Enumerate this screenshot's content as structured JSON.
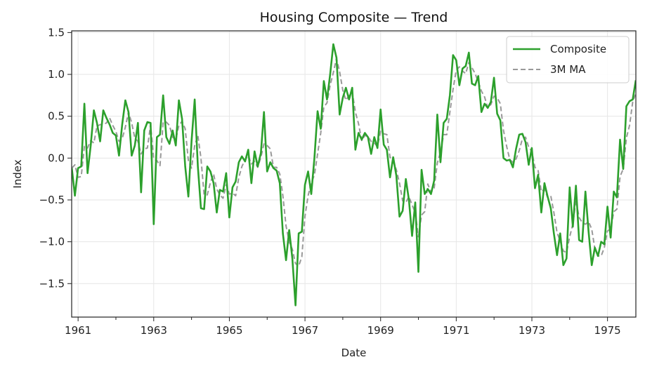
{
  "chart_data": {
    "type": "line",
    "title": "Housing Composite — Trend",
    "xlabel": "Date",
    "ylabel": "Index",
    "xlim": [
      1960.83,
      1975.75
    ],
    "ylim": [
      -1.9,
      1.52
    ],
    "x_ticks": [
      1961,
      1963,
      1965,
      1967,
      1969,
      1971,
      1973,
      1975
    ],
    "x_minor_ticks": [
      1962,
      1964,
      1966,
      1968,
      1970,
      1972,
      1974
    ],
    "y_ticks": [
      -1.5,
      -1.0,
      -0.5,
      0.0,
      0.5,
      1.0,
      1.5
    ],
    "y_tick_labels": [
      "−1.5",
      "−1.0",
      "−0.5",
      "0.0",
      "0.5",
      "1.0",
      "1.5"
    ],
    "grid": true,
    "legend": "top-right",
    "x_start": 1960.833,
    "x_step": 0.08333,
    "series": [
      {
        "name": "Composite",
        "color": "#2ca02c",
        "style": "solid",
        "values": [
          -0.12,
          -0.45,
          -0.12,
          -0.1,
          0.65,
          -0.18,
          0.15,
          0.57,
          0.42,
          0.2,
          0.57,
          0.48,
          0.4,
          0.3,
          0.27,
          0.03,
          0.4,
          0.69,
          0.55,
          0.03,
          0.15,
          0.42,
          -0.41,
          0.33,
          0.43,
          0.42,
          -0.79,
          0.25,
          0.28,
          0.75,
          0.25,
          0.17,
          0.33,
          0.15,
          0.69,
          0.47,
          -0.1,
          -0.46,
          0.2,
          0.7,
          -0.1,
          -0.6,
          -0.61,
          -0.1,
          -0.16,
          -0.3,
          -0.65,
          -0.38,
          -0.4,
          -0.18,
          -0.71,
          -0.35,
          -0.28,
          -0.05,
          0.02,
          -0.04,
          0.1,
          -0.3,
          0.08,
          -0.1,
          0.06,
          0.55,
          -0.16,
          -0.05,
          -0.12,
          -0.15,
          -0.3,
          -0.9,
          -1.22,
          -0.86,
          -1.2,
          -1.76,
          -0.9,
          -0.88,
          -0.32,
          -0.16,
          -0.43,
          0.0,
          0.56,
          0.35,
          0.92,
          0.7,
          1.0,
          1.36,
          1.2,
          0.52,
          0.72,
          0.84,
          0.7,
          0.84,
          0.1,
          0.3,
          0.22,
          0.3,
          0.25,
          0.05,
          0.25,
          0.12,
          0.58,
          0.16,
          0.1,
          -0.23,
          0.01,
          -0.21,
          -0.7,
          -0.63,
          -0.25,
          -0.5,
          -0.93,
          -0.53,
          -1.36,
          -0.14,
          -0.43,
          -0.37,
          -0.43,
          -0.27,
          0.52,
          -0.05,
          0.42,
          0.47,
          0.75,
          1.23,
          1.17,
          0.87,
          1.07,
          1.1,
          1.26,
          0.89,
          0.87,
          0.98,
          0.55,
          0.65,
          0.6,
          0.67,
          0.96,
          0.53,
          0.45,
          0.0,
          -0.03,
          -0.02,
          -0.11,
          0.11,
          0.28,
          0.29,
          0.19,
          -0.08,
          0.12,
          -0.36,
          -0.2,
          -0.65,
          -0.3,
          -0.46,
          -0.6,
          -0.9,
          -1.16,
          -0.9,
          -1.28,
          -1.2,
          -0.35,
          -0.82,
          -0.33,
          -0.98,
          -1.0,
          -0.4,
          -0.88,
          -1.28,
          -1.07,
          -1.17,
          -1.0,
          -1.03,
          -0.58,
          -0.95,
          -0.4,
          -0.47,
          0.22,
          -0.13,
          0.62,
          0.68,
          0.7,
          0.93
        ]
      },
      {
        "name": "3M MA",
        "color": "#999999",
        "style": "dashed",
        "values": [
          -0.12,
          -0.08,
          -0.23,
          -0.22,
          0.14,
          0.12,
          0.21,
          0.18,
          0.38,
          0.4,
          0.4,
          0.42,
          0.48,
          0.39,
          0.32,
          0.2,
          0.23,
          0.37,
          0.55,
          0.42,
          0.24,
          0.2,
          0.05,
          0.11,
          0.12,
          0.4,
          -0.01,
          -0.03,
          -0.09,
          0.43,
          0.43,
          0.39,
          0.25,
          0.22,
          0.39,
          0.44,
          0.35,
          -0.03,
          -0.12,
          0.15,
          0.27,
          0.0,
          -0.44,
          -0.44,
          -0.29,
          -0.19,
          -0.37,
          -0.44,
          -0.48,
          -0.32,
          -0.43,
          -0.42,
          -0.45,
          -0.23,
          -0.1,
          -0.02,
          0.03,
          -0.07,
          -0.04,
          -0.11,
          0.01,
          0.17,
          0.15,
          0.11,
          -0.11,
          -0.11,
          -0.19,
          -0.45,
          -0.81,
          -1.0,
          -1.09,
          -1.26,
          -1.29,
          -1.18,
          -0.7,
          -0.45,
          -0.3,
          -0.2,
          0.05,
          0.3,
          0.61,
          0.66,
          0.87,
          1.02,
          1.19,
          1.03,
          0.81,
          0.69,
          0.75,
          0.79,
          0.55,
          0.41,
          0.21,
          0.27,
          0.26,
          0.2,
          0.18,
          0.14,
          0.32,
          0.29,
          0.28,
          0.01,
          -0.04,
          -0.14,
          -0.3,
          -0.51,
          -0.53,
          -0.46,
          -0.56,
          -0.65,
          -0.94,
          -0.68,
          -0.64,
          -0.31,
          -0.41,
          -0.36,
          -0.06,
          0.07,
          0.28,
          0.28,
          0.55,
          0.82,
          1.05,
          1.09,
          1.04,
          1.01,
          1.14,
          1.08,
          1.01,
          0.91,
          0.8,
          0.73,
          0.6,
          0.64,
          0.74,
          0.72,
          0.65,
          0.33,
          0.14,
          -0.02,
          -0.05,
          -0.01,
          0.09,
          0.23,
          0.25,
          0.13,
          0.08,
          -0.11,
          -0.15,
          -0.4,
          -0.37,
          -0.47,
          -0.45,
          -0.65,
          -0.89,
          -0.99,
          -1.11,
          -1.13,
          -0.94,
          -0.79,
          -0.5,
          -0.71,
          -0.77,
          -0.79,
          -0.76,
          -0.85,
          -1.08,
          -1.17,
          -1.17,
          -1.07,
          -0.87,
          -0.85,
          -0.64,
          -0.61,
          -0.22,
          -0.13,
          0.24,
          0.39,
          0.67,
          0.77
        ]
      }
    ]
  }
}
